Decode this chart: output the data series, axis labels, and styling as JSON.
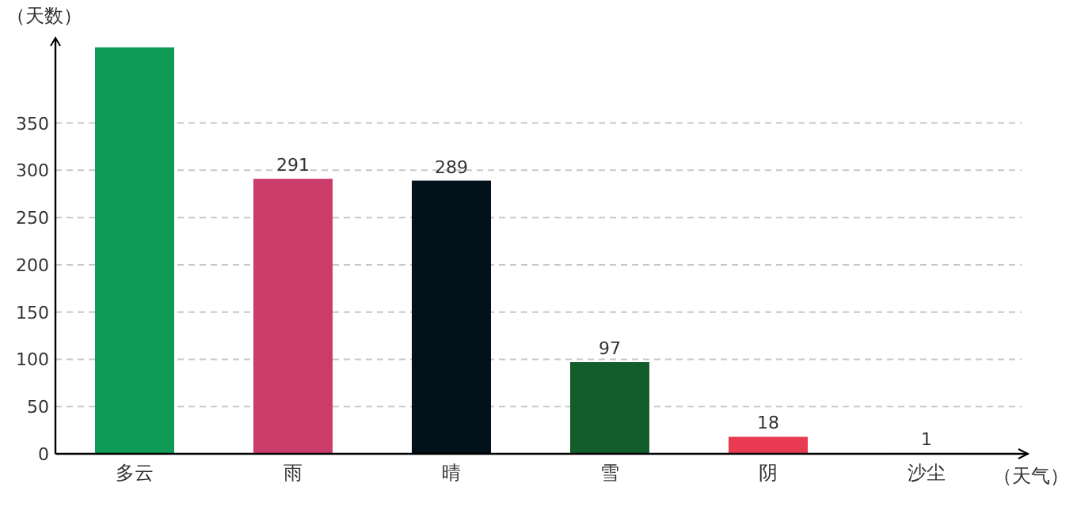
{
  "chart_data": {
    "type": "bar",
    "xlabel": "（天气）",
    "ylabel": "（天数）",
    "categories": [
      "多云",
      "雨",
      "晴",
      "雪",
      "阴",
      "沙尘"
    ],
    "values": [
      430,
      291,
      289,
      97,
      18,
      1
    ],
    "value_labels": [
      null,
      "291",
      "289",
      "97",
      "18",
      "1"
    ],
    "colors": [
      "#0f9a55",
      "#cb3c6a",
      "#02111a",
      "#135c2b",
      "#e83a50",
      "#f0d890"
    ],
    "ylim": [
      0,
      440
    ],
    "yticks": [
      0,
      50,
      100,
      150,
      200,
      250,
      300,
      350
    ],
    "grid": "y"
  }
}
